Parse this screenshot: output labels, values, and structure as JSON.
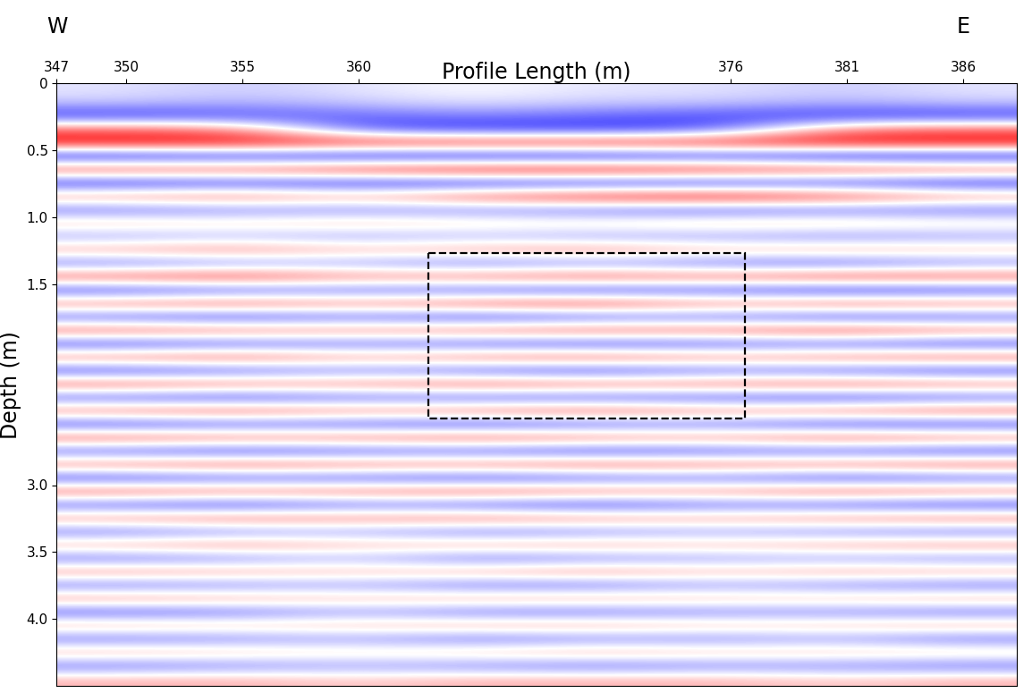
{
  "chart_data": {
    "type": "heatmap",
    "x_label": "Profile Length (m)",
    "y_label": "Depth (m)",
    "direction_labels": [
      "W",
      "E"
    ],
    "xlim": [
      347,
      388.3
    ],
    "ylim": [
      4.5,
      0
    ],
    "xticks": [
      347,
      350,
      355,
      360,
      376,
      381,
      386
    ],
    "yticks": [
      0,
      0.5,
      {
        "value": 1.0,
        "label": "1.0"
      },
      1.5,
      {
        "value": 3.0,
        "label": "3.0"
      },
      3.5,
      {
        "value": 4.0,
        "label": "4.0"
      }
    ],
    "grid": false,
    "value_range": [
      -1,
      1
    ],
    "highlight_box": {
      "x": [
        363.0,
        376.6
      ],
      "depth": [
        1.27,
        2.5
      ]
    },
    "cells": [
      [
        -0.1,
        -0.2,
        -0.1,
        0,
        -0.1,
        -0.1,
        -0.2,
        -0.1
      ],
      [
        -0.2,
        -0.3,
        -0.2,
        -0.1,
        -0.2,
        -0.2,
        -0.3,
        -0.2
      ],
      [
        -0.8,
        -0.7,
        -0.6,
        -0.5,
        -0.6,
        -0.7,
        -0.8,
        -0.8
      ],
      [
        0.6,
        0.5,
        -0.7,
        -0.8,
        -0.8,
        -0.7,
        0.5,
        0.6
      ],
      [
        1.0,
        1.0,
        0.9,
        0.9,
        0.9,
        0.9,
        1.0,
        1.0
      ],
      [
        -1.0,
        -0.9,
        -1.0,
        -1.0,
        -1.0,
        -0.9,
        -1.0,
        -1.0
      ],
      [
        0.8,
        0.7,
        0.9,
        1.0,
        1.0,
        0.9,
        0.8,
        0.7
      ],
      [
        -0.9,
        -0.8,
        -0.9,
        -0.9,
        -0.9,
        -0.9,
        -0.8,
        -0.9
      ],
      [
        0.5,
        0.6,
        0.4,
        0.7,
        0.9,
        1.0,
        0.8,
        0.5
      ],
      [
        -0.6,
        -0.5,
        -0.5,
        -0.5,
        -0.6,
        -0.7,
        -0.6,
        -0.6
      ],
      [
        0.3,
        0.2,
        0.3,
        0.2,
        0.2,
        0.3,
        0.3,
        0.2
      ],
      [
        -0.4,
        -0.3,
        -0.4,
        -0.3,
        -0.4,
        -0.4,
        -0.5,
        -0.4
      ],
      [
        0.4,
        0.5,
        0.3,
        0.4,
        0.5,
        0.3,
        0.4,
        0.3
      ],
      [
        -0.6,
        -0.5,
        -0.4,
        -0.6,
        -0.5,
        -0.6,
        -0.7,
        -0.5
      ],
      [
        0.7,
        0.8,
        0.5,
        0.6,
        0.7,
        0.6,
        0.8,
        0.7
      ],
      [
        -0.8,
        -0.7,
        -0.6,
        -0.7,
        -0.8,
        -0.7,
        -0.9,
        -0.8
      ],
      [
        0.6,
        0.7,
        0.5,
        0.7,
        0.8,
        0.5,
        0.7,
        0.6
      ],
      [
        -0.7,
        -0.8,
        -0.6,
        -0.8,
        -0.7,
        -0.6,
        -0.8,
        -0.7
      ],
      [
        0.7,
        0.6,
        0.5,
        0.6,
        0.7,
        0.6,
        0.8,
        0.6
      ],
      [
        -0.8,
        -0.7,
        -0.6,
        -0.7,
        -0.8,
        -0.7,
        -0.7,
        -0.8
      ],
      [
        0.6,
        0.7,
        0.4,
        0.6,
        0.7,
        0.5,
        0.6,
        0.7
      ],
      [
        -0.8,
        -0.7,
        -0.5,
        -0.7,
        -0.8,
        -0.6,
        -0.7,
        -0.8
      ],
      [
        0.7,
        0.6,
        0.5,
        0.7,
        0.6,
        0.6,
        0.7,
        0.6
      ],
      [
        -0.7,
        -0.8,
        -0.6,
        -0.7,
        -0.7,
        -0.7,
        -0.8,
        -0.7
      ],
      [
        0.6,
        0.7,
        0.5,
        0.6,
        0.7,
        0.5,
        0.6,
        0.7
      ],
      [
        -0.8,
        -0.7,
        -0.7,
        -0.8,
        -0.7,
        -0.6,
        -0.8,
        -0.8
      ],
      [
        0.7,
        0.6,
        0.6,
        0.7,
        0.6,
        0.5,
        0.7,
        0.6
      ],
      [
        -0.7,
        -0.8,
        -0.7,
        -0.7,
        -0.8,
        -0.7,
        -0.7,
        -0.8
      ],
      [
        0.6,
        0.7,
        0.6,
        0.6,
        0.7,
        0.6,
        0.6,
        0.7
      ],
      [
        -0.8,
        -0.7,
        -0.7,
        -0.8,
        -0.7,
        -0.6,
        -0.8,
        -0.7
      ],
      [
        0.7,
        0.6,
        0.6,
        0.7,
        0.6,
        0.5,
        0.7,
        0.6
      ],
      [
        -0.7,
        -0.8,
        -0.6,
        -0.7,
        -0.8,
        -0.6,
        -0.7,
        -0.8
      ],
      [
        0.5,
        0.6,
        0.5,
        0.6,
        0.5,
        0.4,
        0.5,
        0.6
      ],
      [
        -0.6,
        -0.5,
        -0.4,
        -0.6,
        -0.5,
        -0.4,
        -0.5,
        -0.6
      ],
      [
        0.4,
        0.5,
        0.3,
        0.4,
        0.4,
        0.3,
        0.4,
        0.5
      ],
      [
        -0.6,
        -0.5,
        -0.3,
        -0.6,
        -0.5,
        -0.4,
        -0.4,
        -0.5
      ],
      [
        0.5,
        0.4,
        0.3,
        0.4,
        0.5,
        0.3,
        0.4,
        0.4
      ],
      [
        -0.6,
        -0.5,
        -0.4,
        -0.6,
        -0.6,
        -0.4,
        -0.5,
        -0.6
      ],
      [
        0.5,
        0.4,
        0.3,
        0.4,
        0.4,
        0.3,
        0.3,
        0.4
      ],
      [
        -0.7,
        -0.6,
        -0.4,
        -0.6,
        -0.6,
        -0.5,
        -0.5,
        -0.6
      ],
      [
        0.4,
        0.3,
        0.3,
        0.4,
        0.4,
        0.3,
        0.3,
        0.4
      ],
      [
        -0.6,
        -0.5,
        -0.4,
        -0.6,
        -0.5,
        -0.5,
        -0.4,
        -0.6
      ],
      [
        0.4,
        0.3,
        0.2,
        0.3,
        0.4,
        0.3,
        0.3,
        0.3
      ],
      [
        -0.6,
        -0.5,
        -0.4,
        -0.5,
        -0.6,
        -0.5,
        -0.5,
        -0.6
      ],
      [
        0.3,
        0.3,
        0.2,
        0.3,
        0.3,
        0.3,
        0.2,
        0.3
      ]
    ]
  }
}
